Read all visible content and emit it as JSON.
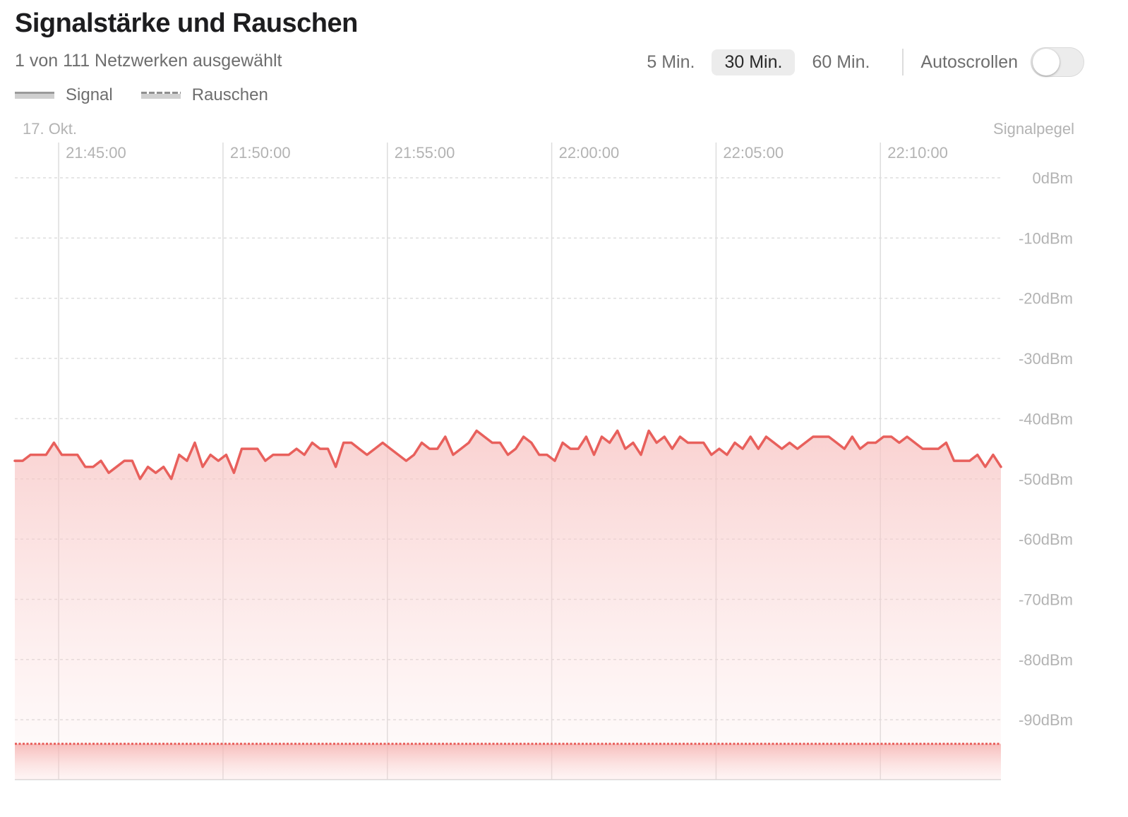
{
  "header": {
    "title": "Signalstärke und Rauschen",
    "subtitle": "1 von 111 Netzwerken ausgewählt"
  },
  "legend": {
    "signal_label": "Signal",
    "noise_label": "Rauschen"
  },
  "controls": {
    "ranges": [
      "5 Min.",
      "30 Min.",
      "60 Min."
    ],
    "selected_range": "30 Min.",
    "autoscroll_label": "Autoscrollen",
    "autoscroll_on": false
  },
  "chart_data": {
    "type": "area",
    "date_label": "17. Okt.",
    "y_axis_title": "Signalpegel",
    "x_tick_labels": [
      "21:45:00",
      "21:50:00",
      "21:55:00",
      "22:00:00",
      "22:05:00",
      "22:10:00"
    ],
    "x_range": [
      "21:43:40",
      "22:13:40"
    ],
    "ylim": [
      -100,
      0
    ],
    "y_ticks": [
      0,
      -10,
      -20,
      -30,
      -40,
      -50,
      -60,
      -70,
      -80,
      -90
    ],
    "y_tick_labels": [
      "0dBm",
      "-10dBm",
      "-20dBm",
      "-30dBm",
      "-40dBm",
      "-50dBm",
      "-60dBm",
      "-70dBm",
      "-80dBm",
      "-90dBm"
    ],
    "series": [
      {
        "name": "Signal",
        "color": "#e8605c",
        "style": "solid",
        "values": [
          -47,
          -47,
          -46,
          -46,
          -46,
          -44,
          -46,
          -46,
          -46,
          -48,
          -48,
          -47,
          -49,
          -48,
          -47,
          -47,
          -50,
          -48,
          -49,
          -48,
          -50,
          -46,
          -47,
          -44,
          -48,
          -46,
          -47,
          -46,
          -49,
          -45,
          -45,
          -45,
          -47,
          -46,
          -46,
          -46,
          -45,
          -46,
          -44,
          -45,
          -45,
          -48,
          -44,
          -44,
          -45,
          -46,
          -45,
          -44,
          -45,
          -46,
          -47,
          -46,
          -44,
          -45,
          -45,
          -43,
          -46,
          -45,
          -44,
          -42,
          -43,
          -44,
          -44,
          -46,
          -45,
          -43,
          -44,
          -46,
          -46,
          -47,
          -44,
          -45,
          -45,
          -43,
          -46,
          -43,
          -44,
          -42,
          -45,
          -44,
          -46,
          -42,
          -44,
          -43,
          -45,
          -43,
          -44,
          -44,
          -44,
          -46,
          -45,
          -46,
          -44,
          -45,
          -43,
          -45,
          -43,
          -44,
          -45,
          -44,
          -45,
          -44,
          -43,
          -43,
          -43,
          -44,
          -45,
          -43,
          -45,
          -44,
          -44,
          -43,
          -43,
          -44,
          -43,
          -44,
          -45,
          -45,
          -45,
          -44,
          -47,
          -47,
          -47,
          -46,
          -48,
          -46,
          -48
        ]
      },
      {
        "name": "Rauschen",
        "color": "#e8605c",
        "style": "dotted",
        "values": [
          -94,
          -94
        ]
      }
    ],
    "grid": true,
    "legend_position": "top-left"
  }
}
